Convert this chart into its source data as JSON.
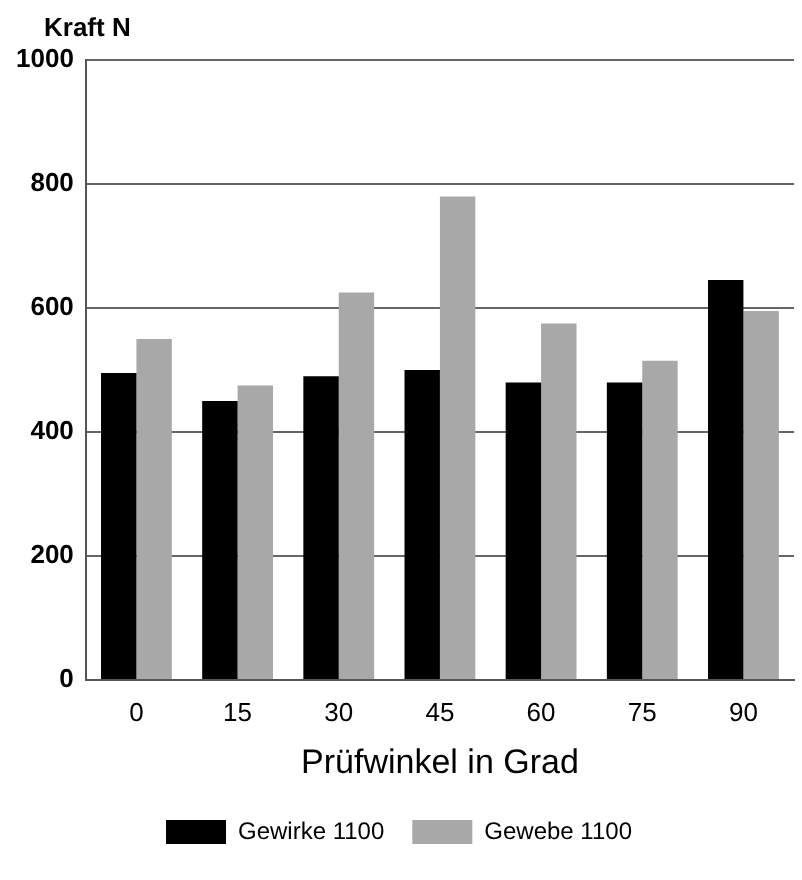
{
  "chart_data": {
    "type": "bar",
    "ylabel": "Kraft N",
    "xlabel": "Prüfwinkel in Grad",
    "categories": [
      "0",
      "15",
      "30",
      "45",
      "60",
      "75",
      "90"
    ],
    "series": [
      {
        "name": "Gewirke 1100",
        "color": "#000000",
        "values": [
          495,
          450,
          490,
          500,
          480,
          480,
          645
        ]
      },
      {
        "name": "Gewebe 1100",
        "color": "#a8a8a8",
        "values": [
          550,
          475,
          625,
          780,
          575,
          515,
          595
        ]
      }
    ],
    "ylim": [
      0,
      1000
    ],
    "yticks": [
      0,
      200,
      400,
      600,
      800,
      1000
    ],
    "grid": "y",
    "legend": "bottom"
  }
}
